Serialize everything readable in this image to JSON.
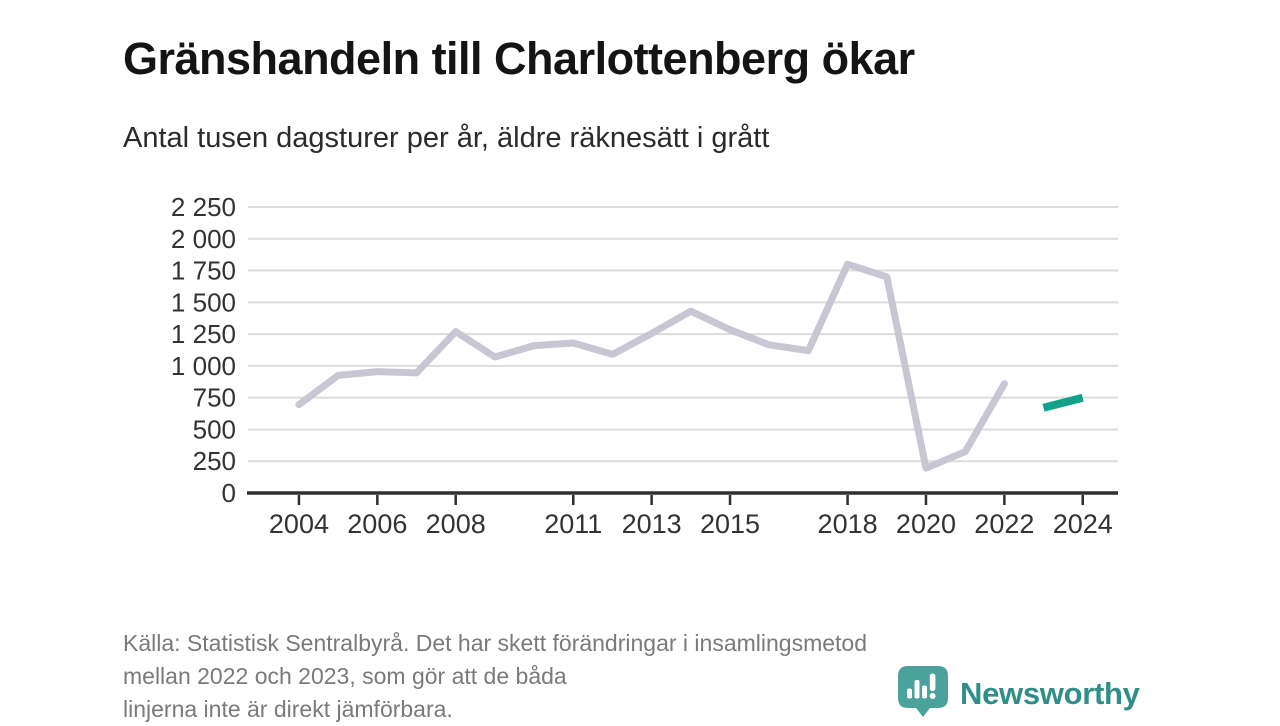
{
  "header": {
    "title": "Gränshandeln till Charlottenberg ökar",
    "subtitle": "Antal tusen dagsturer per år, äldre räknesätt i grått"
  },
  "footer": {
    "lines": [
      "Källa: Statistisk Sentralbyrå. Det har skett förändringar i insamlingsmetod",
      "mellan 2022 och 2023, som gör att de båda",
      "linjerna inte är direkt jämförbara."
    ]
  },
  "logo": {
    "label": "Newsworthy",
    "icon": "newsworthy-speech-bubble-bars-icon",
    "icon_color": "#4aa29a",
    "text_color": "#2f8e86"
  },
  "colors": {
    "old_series": "#c8c6d2",
    "new_series": "#12a28a",
    "grid": "#dcdcdc",
    "axis": "#2f2f2f",
    "tick_text": "#333333",
    "title_text": "#141414"
  },
  "chart_data": {
    "type": "line",
    "title": "Gränshandeln till Charlottenberg ökar",
    "subtitle": "Antal tusen dagsturer per år, äldre räknesätt i grått",
    "xlabel": "",
    "ylabel": "Antal tusen dagsturer per år",
    "xlim": [
      2002.7,
      2024.9
    ],
    "ylim": [
      0,
      2250
    ],
    "grid": true,
    "legend": false,
    "y_ticks": [
      0,
      250,
      500,
      750,
      1000,
      1250,
      1500,
      1750,
      2000,
      2250
    ],
    "y_tick_labels": [
      "0",
      "250",
      "500",
      "750",
      "1 000",
      "1 250",
      "1 500",
      "1 750",
      "2 000",
      "2 250"
    ],
    "x_tick_years": [
      2004,
      2006,
      2008,
      2011,
      2013,
      2015,
      2018,
      2020,
      2022,
      2024
    ],
    "x_tick_labels": [
      "2004",
      "2006",
      "2008",
      "2011",
      "2013",
      "2015",
      "2018",
      "2020",
      "2022",
      "2024"
    ],
    "series": [
      {
        "name": "old-counting-method-gray",
        "color_key": "old_series",
        "stroke_width": 7,
        "linecap": "round",
        "x": [
          2004,
          2005,
          2006,
          2007,
          2008,
          2009,
          2010,
          2011,
          2012,
          2013,
          2014,
          2015,
          2016,
          2017,
          2018,
          2019,
          2020,
          2021,
          2022
        ],
        "values": [
          695,
          925,
          955,
          945,
          1270,
          1070,
          1160,
          1180,
          1090,
          1255,
          1430,
          1285,
          1165,
          1120,
          1800,
          1700,
          195,
          325,
          860
        ]
      },
      {
        "name": "new-counting-method-teal",
        "color_key": "new_series",
        "stroke_width": 8,
        "linecap": "butt",
        "x": [
          2023,
          2024
        ],
        "values": [
          670,
          750
        ]
      }
    ]
  }
}
